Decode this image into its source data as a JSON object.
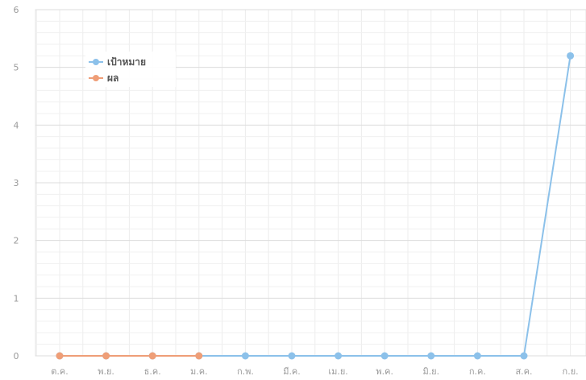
{
  "chart_data": {
    "type": "line",
    "categories": [
      "ต.ค.",
      "พ.ย.",
      "ธ.ค.",
      "ม.ค.",
      "ก.พ.",
      "มี.ค.",
      "เม.ย.",
      "พ.ค.",
      "มิ.ย.",
      "ก.ค.",
      "ส.ค.",
      "ก.ย."
    ],
    "ylim": [
      0,
      6
    ],
    "yticks": [
      "0",
      "1",
      "2",
      "3",
      "4",
      "5",
      "6"
    ],
    "grid": true,
    "legend_position": "top-left",
    "series": [
      {
        "name": "เป้าหมาย",
        "color": "#8cc1ea",
        "values": [
          0,
          0,
          0,
          0,
          0,
          0,
          0,
          0,
          0,
          0,
          0,
          5.2
        ]
      },
      {
        "name": "ผล",
        "color": "#ef9e77",
        "values": [
          0,
          0,
          0,
          0,
          null,
          null,
          null,
          null,
          null,
          null,
          null,
          null
        ]
      }
    ]
  }
}
